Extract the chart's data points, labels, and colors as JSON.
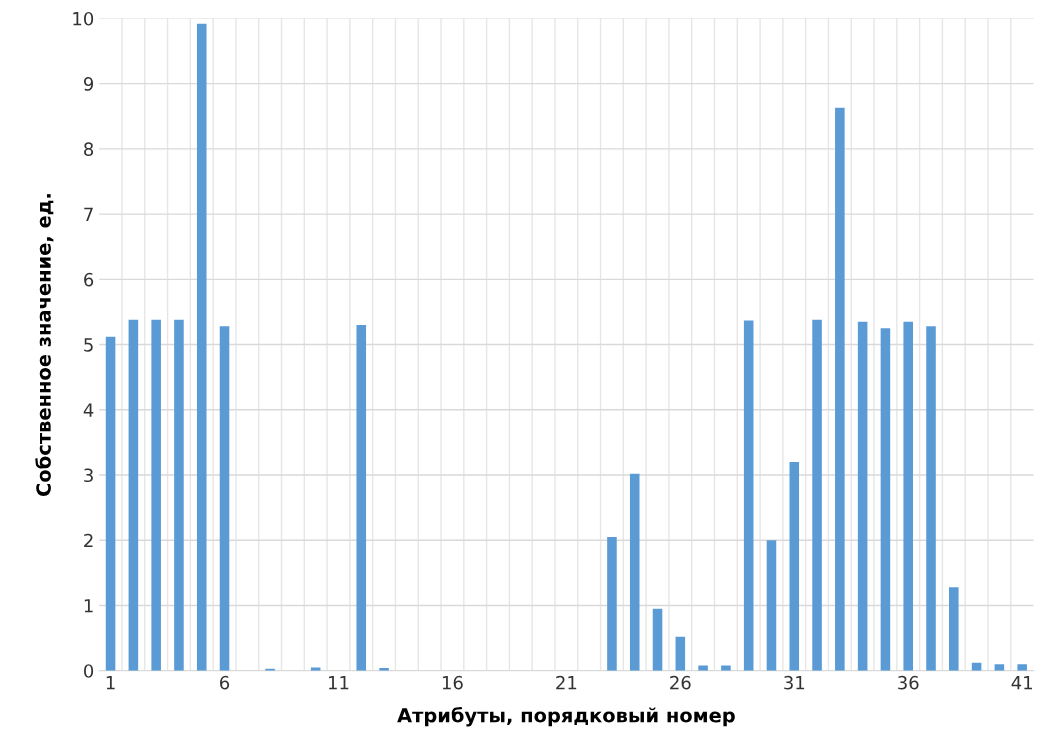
{
  "chart_data": {
    "type": "bar",
    "xlabel": "Атрибуты, порядковый номер",
    "ylabel": "Собственное значение, ед.",
    "categories": [
      "1",
      null,
      null,
      null,
      null,
      "6",
      null,
      null,
      null,
      null,
      "11",
      null,
      null,
      null,
      null,
      "16",
      null,
      null,
      null,
      null,
      "21",
      null,
      null,
      null,
      null,
      "26",
      null,
      null,
      null,
      null,
      "31",
      null,
      null,
      null,
      null,
      "36",
      null,
      null,
      null,
      null,
      "41"
    ],
    "values": [
      5.12,
      5.38,
      5.38,
      5.38,
      9.92,
      5.28,
      0,
      0.03,
      0,
      0.05,
      0,
      5.3,
      0.04,
      0,
      0,
      0,
      0,
      0,
      0,
      0,
      0,
      0,
      2.05,
      3.02,
      0.95,
      0.52,
      0.08,
      0.08,
      5.37,
      2.0,
      3.2,
      5.38,
      8.63,
      5.35,
      5.25,
      5.35,
      5.28,
      1.28,
      0.12,
      0.1,
      0.1
    ],
    "color": "#5b9bd5",
    "ylim": [
      0,
      10
    ],
    "yticks": [
      0,
      1,
      2,
      3,
      4,
      5,
      6,
      7,
      8,
      9,
      10
    ],
    "grid": true,
    "legend": false
  }
}
